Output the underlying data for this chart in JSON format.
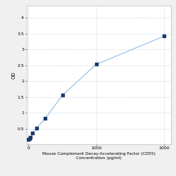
{
  "x": [
    0,
    15.625,
    31.25,
    62.5,
    125,
    250,
    500,
    1000,
    2000
  ],
  "y": [
    0.148,
    0.185,
    0.228,
    0.36,
    0.52,
    0.82,
    1.55,
    2.53,
    3.42
  ],
  "xlabel_line1": "Mouse Complement Decay-Accelerating Factor (CD55)",
  "xlabel_line2": "Concentration (pg/ml)",
  "ylabel": "OD",
  "xtick_labels": [
    "0",
    "1000",
    "2000"
  ],
  "xtick_positions": [
    0,
    1000,
    2000
  ],
  "ytick_positions": [
    0.5,
    1.0,
    1.5,
    2.0,
    2.5,
    3.0,
    3.5,
    4.0
  ],
  "ytick_labels": [
    "0.5",
    "1",
    "1.5",
    "2",
    "2.5",
    "3",
    "3.5",
    "4"
  ],
  "xlim": [
    -30,
    2100
  ],
  "ylim": [
    0.0,
    4.4
  ],
  "line_color": "#a8c8e8",
  "marker_color": "#1a3a6b",
  "grid_color": "#d0dde8",
  "bg_color": "#ffffff",
  "fig_bg_color": "#f0f0f0",
  "marker_size": 3.5,
  "line_width": 1.0,
  "xlabel_fontsize": 4.2,
  "ylabel_fontsize": 5.0,
  "tick_fontsize": 4.5
}
